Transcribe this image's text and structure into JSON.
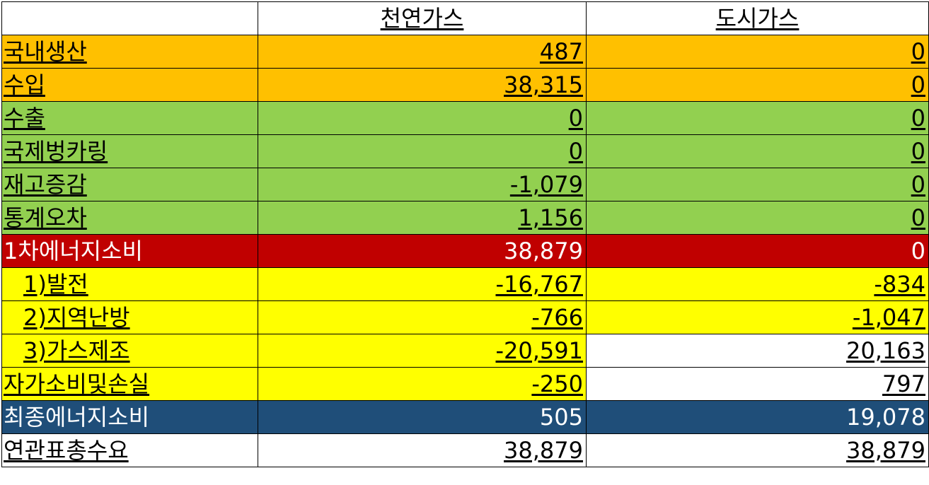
{
  "colors": {
    "orange": "#ffc000",
    "green": "#92d050",
    "red": "#c00000",
    "yellow": "#ffff00",
    "navy": "#1f4e79",
    "white": "#ffffff"
  },
  "header": {
    "corner": "",
    "col1": "천연가스",
    "col2": "도시가스"
  },
  "rows": [
    {
      "label": "국내생산",
      "natural_gas": "487",
      "city_gas": "0"
    },
    {
      "label": "수입",
      "natural_gas": "38,315",
      "city_gas": "0"
    },
    {
      "label": "수출",
      "natural_gas": "0",
      "city_gas": "0"
    },
    {
      "label": "국제벙카링",
      "natural_gas": "0",
      "city_gas": "0"
    },
    {
      "label": "재고증감",
      "natural_gas": "-1,079",
      "city_gas": "0"
    },
    {
      "label": "통계오차",
      "natural_gas": "1,156",
      "city_gas": "0"
    },
    {
      "label": "1차에너지소비",
      "natural_gas": "38,879",
      "city_gas": "0"
    },
    {
      "label": "1)발전",
      "natural_gas": "-16,767",
      "city_gas": "-834"
    },
    {
      "label": "2)지역난방",
      "natural_gas": "-766",
      "city_gas": "-1,047"
    },
    {
      "label": "3)가스제조",
      "natural_gas": "-20,591",
      "city_gas": "20,163"
    },
    {
      "label": "자가소비및손실",
      "natural_gas": "-250",
      "city_gas": "797"
    },
    {
      "label": "최종에너지소비",
      "natural_gas": "505",
      "city_gas": "19,078"
    },
    {
      "label": "연관표총수요",
      "natural_gas": "38,879",
      "city_gas": "38,879"
    }
  ]
}
